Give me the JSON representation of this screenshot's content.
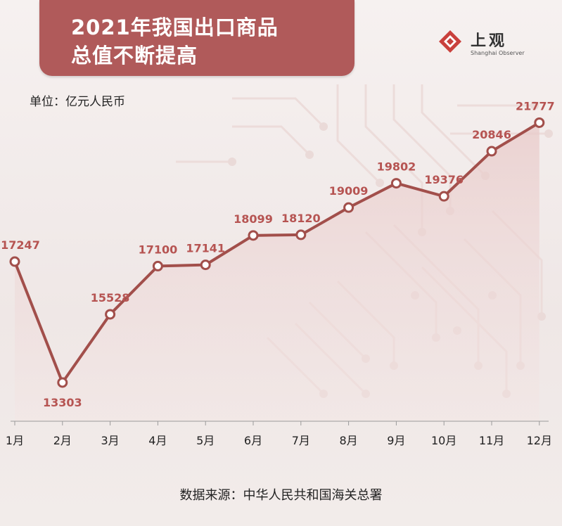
{
  "title": [
    "2021年我国出口商品",
    "总值不断提高"
  ],
  "logo": {
    "name_cn": "上观",
    "name_en": "Shanghai Observer"
  },
  "unit_label": "单位：亿元人民币",
  "source_label": "数据来源：中华人民共和国海关总署",
  "colors": {
    "title_bg": "#b05a5a",
    "line": "#a24f4b",
    "label": "#b65452"
  },
  "chart_data": {
    "type": "line",
    "categories": [
      "1月",
      "2月",
      "3月",
      "4月",
      "5月",
      "6月",
      "7月",
      "8月",
      "9月",
      "10月",
      "11月",
      "12月"
    ],
    "series": [
      {
        "values": [
          17247,
          13303,
          15528,
          17100,
          17141,
          18099,
          18120,
          19009,
          19802,
          19376,
          20846,
          21777
        ]
      }
    ],
    "ylabel": "单位：亿元人民币",
    "grid": false
  }
}
